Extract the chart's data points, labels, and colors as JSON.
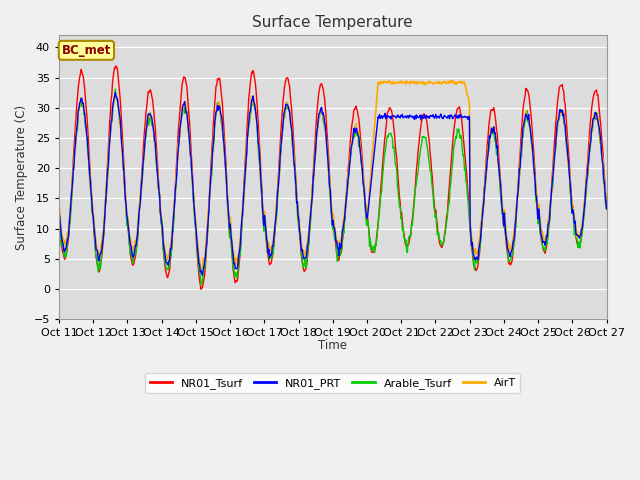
{
  "title": "Surface Temperature",
  "ylabel": "Surface Temperature (C)",
  "xlabel": "Time",
  "ylim": [
    -5,
    42
  ],
  "yticks": [
    -5,
    0,
    5,
    10,
    15,
    20,
    25,
    30,
    35,
    40
  ],
  "annotation": "BC_met",
  "fig_facecolor": "#f0f0f0",
  "ax_facecolor": "#dcdcdc",
  "grid_color": "#ffffff",
  "series_colors": {
    "NR01_Tsurf": "#ff0000",
    "NR01_PRT": "#0000ff",
    "Arable_Tsurf": "#00cc00",
    "AirT": "#ffaa00"
  },
  "xtick_labels": [
    "Oct 11",
    "Oct 12",
    "Oct 13",
    "Oct 14",
    "Oct 15",
    "Oct 16",
    "Oct 17",
    "Oct 18",
    "Oct 19",
    "Oct 20",
    "Oct 21",
    "Oct 22",
    "Oct 23",
    "Oct 24",
    "Oct 25",
    "Oct 26",
    "Oct 27"
  ],
  "n_days": 16,
  "pts_per_day": 48,
  "nr01_tsurf_mins": [
    5,
    3,
    4,
    2,
    0,
    1,
    4,
    3,
    5,
    6,
    7,
    7,
    3,
    4,
    6,
    7
  ],
  "nr01_tsurf_maxs": [
    36,
    37,
    33,
    35,
    35,
    36,
    35,
    34,
    30,
    30,
    29,
    30,
    30,
    33,
    34,
    33
  ],
  "airt_flat_days": [
    9,
    10,
    11
  ],
  "airt_flat_value": 34.2,
  "nr01_prt_flat_days": [
    9,
    10,
    11
  ],
  "nr01_prt_flat_value": 28.5
}
